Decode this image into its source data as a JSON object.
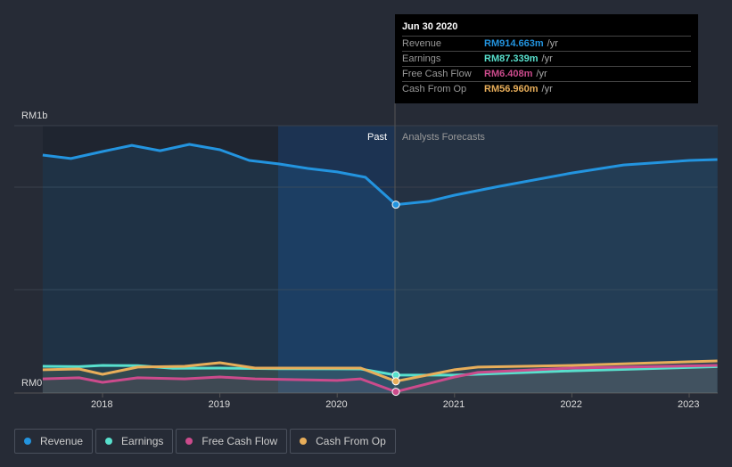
{
  "tooltip": {
    "date": "Jun 30 2020",
    "rows": [
      {
        "label": "Revenue",
        "value": "RM914.663m",
        "unit": "/yr",
        "color": "#2394df"
      },
      {
        "label": "Earnings",
        "value": "RM87.339m",
        "unit": "/yr",
        "color": "#58e0cd"
      },
      {
        "label": "Free Cash Flow",
        "value": "RM6.408m",
        "unit": "/yr",
        "color": "#cc4b8c"
      },
      {
        "label": "Cash From Op",
        "value": "RM56.960m",
        "unit": "/yr",
        "color": "#e8ae5a"
      }
    ]
  },
  "chart_data": {
    "type": "line",
    "y_top_label": "RM1b",
    "y_bottom_label": "RM0",
    "past_label": "Past",
    "forecast_label": "Analysts Forecasts",
    "ylim": [
      0,
      1300
    ],
    "xlim": [
      2017.49,
      2023.24
    ],
    "x_ticks": [
      "2018",
      "2019",
      "2020",
      "2021",
      "2022",
      "2023"
    ],
    "series": [
      {
        "name": "Revenue",
        "color": "#2394df",
        "points": [
          [
            2017.49,
            1156
          ],
          [
            2017.73,
            1139
          ],
          [
            2018.0,
            1173
          ],
          [
            2018.25,
            1203
          ],
          [
            2018.49,
            1177
          ],
          [
            2018.74,
            1208
          ],
          [
            2019.0,
            1182
          ],
          [
            2019.25,
            1130
          ],
          [
            2019.5,
            1113
          ],
          [
            2019.75,
            1091
          ],
          [
            2020.0,
            1074
          ],
          [
            2020.24,
            1048
          ],
          [
            2020.5,
            915
          ],
          [
            2020.78,
            931
          ],
          [
            2021.0,
            961
          ],
          [
            2021.38,
            1004
          ],
          [
            2022.0,
            1069
          ],
          [
            2022.44,
            1108
          ],
          [
            2023.0,
            1130
          ],
          [
            2023.24,
            1134
          ]
        ]
      },
      {
        "name": "Earnings",
        "color": "#58e0cd",
        "points": [
          [
            2017.49,
            130
          ],
          [
            2017.8,
            128
          ],
          [
            2018.0,
            134
          ],
          [
            2018.3,
            133
          ],
          [
            2018.6,
            120
          ],
          [
            2019.0,
            121
          ],
          [
            2019.5,
            118
          ],
          [
            2020.2,
            117
          ],
          [
            2020.5,
            87
          ],
          [
            2021.0,
            87
          ],
          [
            2022.0,
            108
          ],
          [
            2023.24,
            128
          ]
        ]
      },
      {
        "name": "Free Cash Flow",
        "color": "#cc4b8c",
        "points": [
          [
            2017.49,
            69
          ],
          [
            2017.8,
            74
          ],
          [
            2018.0,
            52
          ],
          [
            2018.3,
            74
          ],
          [
            2018.7,
            69
          ],
          [
            2019.0,
            78
          ],
          [
            2019.3,
            69
          ],
          [
            2020.0,
            61
          ],
          [
            2020.2,
            69
          ],
          [
            2020.5,
            6
          ],
          [
            2021.0,
            78
          ],
          [
            2021.2,
            100
          ],
          [
            2022.0,
            121
          ],
          [
            2023.24,
            134
          ]
        ]
      },
      {
        "name": "Cash From Op",
        "color": "#e8ae5a",
        "points": [
          [
            2017.49,
            113
          ],
          [
            2017.8,
            117
          ],
          [
            2018.0,
            91
          ],
          [
            2018.3,
            126
          ],
          [
            2018.7,
            130
          ],
          [
            2019.0,
            147
          ],
          [
            2019.3,
            121
          ],
          [
            2020.2,
            121
          ],
          [
            2020.5,
            57
          ],
          [
            2021.0,
            113
          ],
          [
            2021.2,
            126
          ],
          [
            2022.0,
            134
          ],
          [
            2023.24,
            156
          ]
        ]
      }
    ]
  },
  "legend": [
    {
      "label": "Revenue",
      "color": "#2394df"
    },
    {
      "label": "Earnings",
      "color": "#58e0cd"
    },
    {
      "label": "Free Cash Flow",
      "color": "#cc4b8c"
    },
    {
      "label": "Cash From Op",
      "color": "#e8ae5a"
    }
  ]
}
